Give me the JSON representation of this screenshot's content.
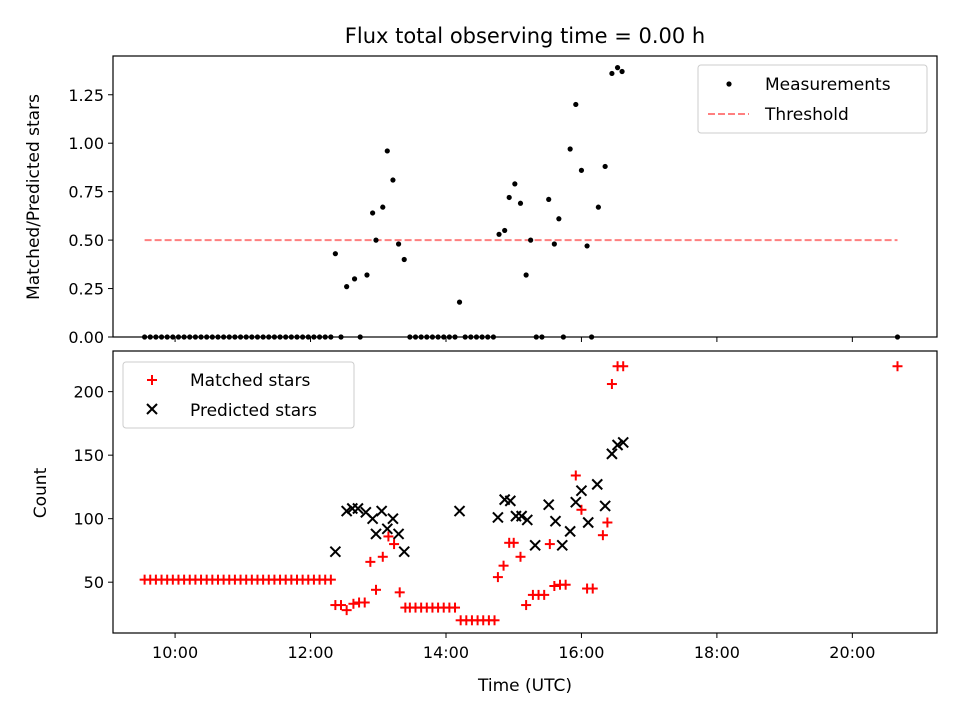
{
  "chart_data": [
    {
      "type": "scatter",
      "title": "Flux total observing time = 0.00 h",
      "xlabel": "",
      "ylabel": "Matched/Predicted stars",
      "xlim": [
        "09:05",
        "21:15"
      ],
      "ylim": [
        0,
        1.45
      ],
      "yticks": [
        "0.00",
        "0.25",
        "0.50",
        "0.75",
        "1.00",
        "1.25"
      ],
      "grid": false,
      "legend": "top-right",
      "colors": {
        "measurements": "#000000",
        "threshold": "#ff7f7f"
      },
      "series": [
        {
          "name": "Measurements",
          "marker": "dot",
          "points": [
            [
              "09:33",
              0
            ],
            [
              "09:38",
              0
            ],
            [
              "09:43",
              0
            ],
            [
              "09:48",
              0
            ],
            [
              "09:53",
              0
            ],
            [
              "09:58",
              0
            ],
            [
              "10:03",
              0
            ],
            [
              "10:08",
              0
            ],
            [
              "10:13",
              0
            ],
            [
              "10:18",
              0
            ],
            [
              "10:23",
              0
            ],
            [
              "10:28",
              0
            ],
            [
              "10:33",
              0
            ],
            [
              "10:38",
              0
            ],
            [
              "10:43",
              0
            ],
            [
              "10:48",
              0
            ],
            [
              "10:53",
              0
            ],
            [
              "10:58",
              0
            ],
            [
              "11:03",
              0
            ],
            [
              "11:08",
              0
            ],
            [
              "11:13",
              0
            ],
            [
              "11:18",
              0
            ],
            [
              "11:23",
              0
            ],
            [
              "11:28",
              0
            ],
            [
              "11:33",
              0
            ],
            [
              "11:38",
              0
            ],
            [
              "11:43",
              0
            ],
            [
              "11:48",
              0
            ],
            [
              "11:53",
              0
            ],
            [
              "11:58",
              0
            ],
            [
              "12:03",
              0
            ],
            [
              "12:08",
              0
            ],
            [
              "12:13",
              0
            ],
            [
              "12:18",
              0
            ],
            [
              "12:22",
              0.43
            ],
            [
              "12:27",
              0
            ],
            [
              "12:32",
              0.26
            ],
            [
              "12:39",
              0.3
            ],
            [
              "12:44",
              0
            ],
            [
              "12:50",
              0.32
            ],
            [
              "12:55",
              0.64
            ],
            [
              "12:58",
              0.5
            ],
            [
              "13:04",
              0.67
            ],
            [
              "13:08",
              0.96
            ],
            [
              "13:13",
              0.81
            ],
            [
              "13:18",
              0.48
            ],
            [
              "13:23",
              0.4
            ],
            [
              "13:28",
              0
            ],
            [
              "13:33",
              0
            ],
            [
              "13:38",
              0
            ],
            [
              "13:43",
              0
            ],
            [
              "13:48",
              0
            ],
            [
              "13:53",
              0
            ],
            [
              "13:58",
              0
            ],
            [
              "14:03",
              0
            ],
            [
              "14:08",
              0
            ],
            [
              "14:12",
              0.18
            ],
            [
              "14:17",
              0
            ],
            [
              "14:22",
              0
            ],
            [
              "14:27",
              0
            ],
            [
              "14:32",
              0
            ],
            [
              "14:37",
              0
            ],
            [
              "14:42",
              0
            ],
            [
              "14:47",
              0.53
            ],
            [
              "14:52",
              0.55
            ],
            [
              "14:56",
              0.72
            ],
            [
              "15:01",
              0.79
            ],
            [
              "15:06",
              0.69
            ],
            [
              "15:11",
              0.32
            ],
            [
              "15:15",
              0.5
            ],
            [
              "15:20",
              0
            ],
            [
              "15:25",
              0
            ],
            [
              "15:31",
              0.71
            ],
            [
              "15:36",
              0.48
            ],
            [
              "15:40",
              0.61
            ],
            [
              "15:44",
              0
            ],
            [
              "15:50",
              0.97
            ],
            [
              "15:55",
              1.2
            ],
            [
              "16:00",
              0.86
            ],
            [
              "16:05",
              0.47
            ],
            [
              "16:09",
              0
            ],
            [
              "16:15",
              0.67
            ],
            [
              "16:21",
              0.88
            ],
            [
              "16:27",
              1.36
            ],
            [
              "16:32",
              1.39
            ],
            [
              "16:36",
              1.37
            ],
            [
              "20:40",
              0
            ]
          ]
        },
        {
          "name": "Threshold",
          "style": "dashed-line",
          "x": [
            "09:33",
            "20:40"
          ],
          "y": [
            0.5,
            0.5
          ]
        }
      ]
    },
    {
      "type": "scatter",
      "title": "",
      "xlabel": "Time (UTC)",
      "ylabel": "Count",
      "xlim": [
        "09:05",
        "21:15"
      ],
      "ylim": [
        10,
        232
      ],
      "xticks": [
        "10:00",
        "12:00",
        "14:00",
        "16:00",
        "18:00",
        "20:00"
      ],
      "yticks": [
        "50",
        "100",
        "150",
        "200"
      ],
      "grid": false,
      "legend": "top-left",
      "colors": {
        "matched": "#ff0000",
        "predicted": "#000000"
      },
      "series": [
        {
          "name": "Matched stars",
          "marker": "plus",
          "points": [
            [
              "09:33",
              52
            ],
            [
              "09:38",
              52
            ],
            [
              "09:43",
              52
            ],
            [
              "09:48",
              52
            ],
            [
              "09:53",
              52
            ],
            [
              "09:58",
              52
            ],
            [
              "10:03",
              52
            ],
            [
              "10:08",
              52
            ],
            [
              "10:13",
              52
            ],
            [
              "10:18",
              52
            ],
            [
              "10:23",
              52
            ],
            [
              "10:28",
              52
            ],
            [
              "10:33",
              52
            ],
            [
              "10:38",
              52
            ],
            [
              "10:43",
              52
            ],
            [
              "10:48",
              52
            ],
            [
              "10:53",
              52
            ],
            [
              "10:58",
              52
            ],
            [
              "11:03",
              52
            ],
            [
              "11:08",
              52
            ],
            [
              "11:13",
              52
            ],
            [
              "11:18",
              52
            ],
            [
              "11:23",
              52
            ],
            [
              "11:28",
              52
            ],
            [
              "11:33",
              52
            ],
            [
              "11:38",
              52
            ],
            [
              "11:43",
              52
            ],
            [
              "11:48",
              52
            ],
            [
              "11:53",
              52
            ],
            [
              "11:58",
              52
            ],
            [
              "12:03",
              52
            ],
            [
              "12:08",
              52
            ],
            [
              "12:13",
              52
            ],
            [
              "12:18",
              52
            ],
            [
              "12:22",
              32
            ],
            [
              "12:27",
              32
            ],
            [
              "12:32",
              28
            ],
            [
              "12:38",
              33
            ],
            [
              "12:43",
              34
            ],
            [
              "12:48",
              34
            ],
            [
              "12:53",
              66
            ],
            [
              "12:58",
              44
            ],
            [
              "13:04",
              70
            ],
            [
              "13:09",
              86
            ],
            [
              "13:14",
              80
            ],
            [
              "13:19",
              42
            ],
            [
              "13:24",
              30
            ],
            [
              "13:28",
              30
            ],
            [
              "13:33",
              30
            ],
            [
              "13:38",
              30
            ],
            [
              "13:43",
              30
            ],
            [
              "13:48",
              30
            ],
            [
              "13:53",
              30
            ],
            [
              "13:58",
              30
            ],
            [
              "14:03",
              30
            ],
            [
              "14:08",
              30
            ],
            [
              "14:13",
              20
            ],
            [
              "14:18",
              20
            ],
            [
              "14:23",
              20
            ],
            [
              "14:28",
              20
            ],
            [
              "14:33",
              20
            ],
            [
              "14:38",
              20
            ],
            [
              "14:43",
              20
            ],
            [
              "14:46",
              54
            ],
            [
              "14:51",
              63
            ],
            [
              "14:56",
              81
            ],
            [
              "15:00",
              81
            ],
            [
              "15:06",
              70
            ],
            [
              "15:11",
              32
            ],
            [
              "15:17",
              40
            ],
            [
              "15:22",
              40
            ],
            [
              "15:27",
              40
            ],
            [
              "15:32",
              80
            ],
            [
              "15:36",
              47
            ],
            [
              "15:41",
              48
            ],
            [
              "15:46",
              48
            ],
            [
              "15:55",
              134
            ],
            [
              "16:00",
              107
            ],
            [
              "16:05",
              45
            ],
            [
              "16:10",
              45
            ],
            [
              "16:19",
              87
            ],
            [
              "16:23",
              97
            ],
            [
              "16:27",
              206
            ],
            [
              "16:32",
              220
            ],
            [
              "16:37",
              220
            ],
            [
              "20:40",
              220
            ]
          ]
        },
        {
          "name": "Predicted stars",
          "marker": "x",
          "points": [
            [
              "12:22",
              74
            ],
            [
              "12:32",
              106
            ],
            [
              "12:37",
              108
            ],
            [
              "12:42",
              108
            ],
            [
              "12:49",
              105
            ],
            [
              "12:55",
              100
            ],
            [
              "12:58",
              88
            ],
            [
              "13:03",
              106
            ],
            [
              "13:08",
              92
            ],
            [
              "13:13",
              100
            ],
            [
              "13:18",
              88
            ],
            [
              "13:23",
              74
            ],
            [
              "14:12",
              106
            ],
            [
              "14:46",
              101
            ],
            [
              "14:52",
              115
            ],
            [
              "14:57",
              114
            ],
            [
              "15:02",
              102
            ],
            [
              "15:07",
              102
            ],
            [
              "15:12",
              99
            ],
            [
              "15:19",
              79
            ],
            [
              "15:31",
              111
            ],
            [
              "15:37",
              98
            ],
            [
              "15:43",
              79
            ],
            [
              "15:50",
              90
            ],
            [
              "15:55",
              113
            ],
            [
              "16:00",
              122
            ],
            [
              "16:06",
              97
            ],
            [
              "16:14",
              127
            ],
            [
              "16:21",
              110
            ],
            [
              "16:27",
              151
            ],
            [
              "16:32",
              158
            ],
            [
              "16:37",
              160
            ]
          ]
        }
      ]
    }
  ]
}
